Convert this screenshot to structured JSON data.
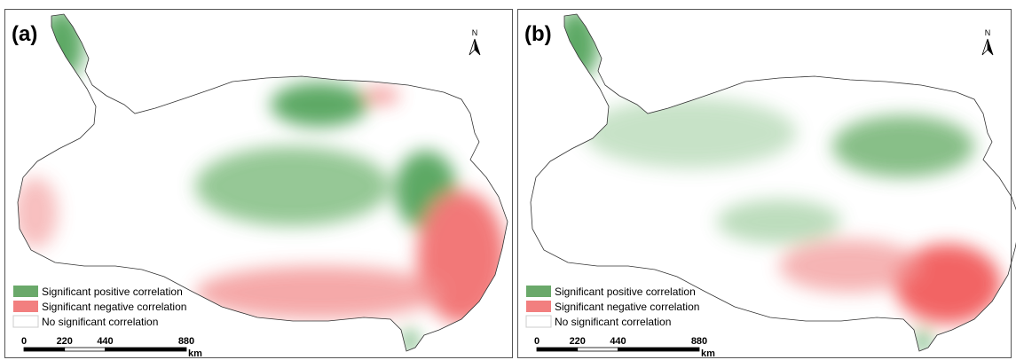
{
  "panels": [
    {
      "label": "(a)",
      "north": "N",
      "legend": [
        {
          "text": "Significant positive correlation",
          "color": "#6aa96a"
        },
        {
          "text": "Significant negative correlation",
          "color": "#f27f7f"
        },
        {
          "text": "No significant  correlation",
          "color": "#ffffff"
        }
      ],
      "scale_ticks": [
        0,
        220,
        440,
        880
      ],
      "scale_unit": "km"
    },
    {
      "label": "(b)",
      "north": "N",
      "legend": [
        {
          "text": "Significant positive correlation",
          "color": "#6aa96a"
        },
        {
          "text": "Significant negative correlation",
          "color": "#f27f7f"
        },
        {
          "text": "No significant  correlation",
          "color": "#ffffff"
        }
      ],
      "scale_ticks": [
        0,
        220,
        440,
        880
      ],
      "scale_unit": "km"
    }
  ]
}
